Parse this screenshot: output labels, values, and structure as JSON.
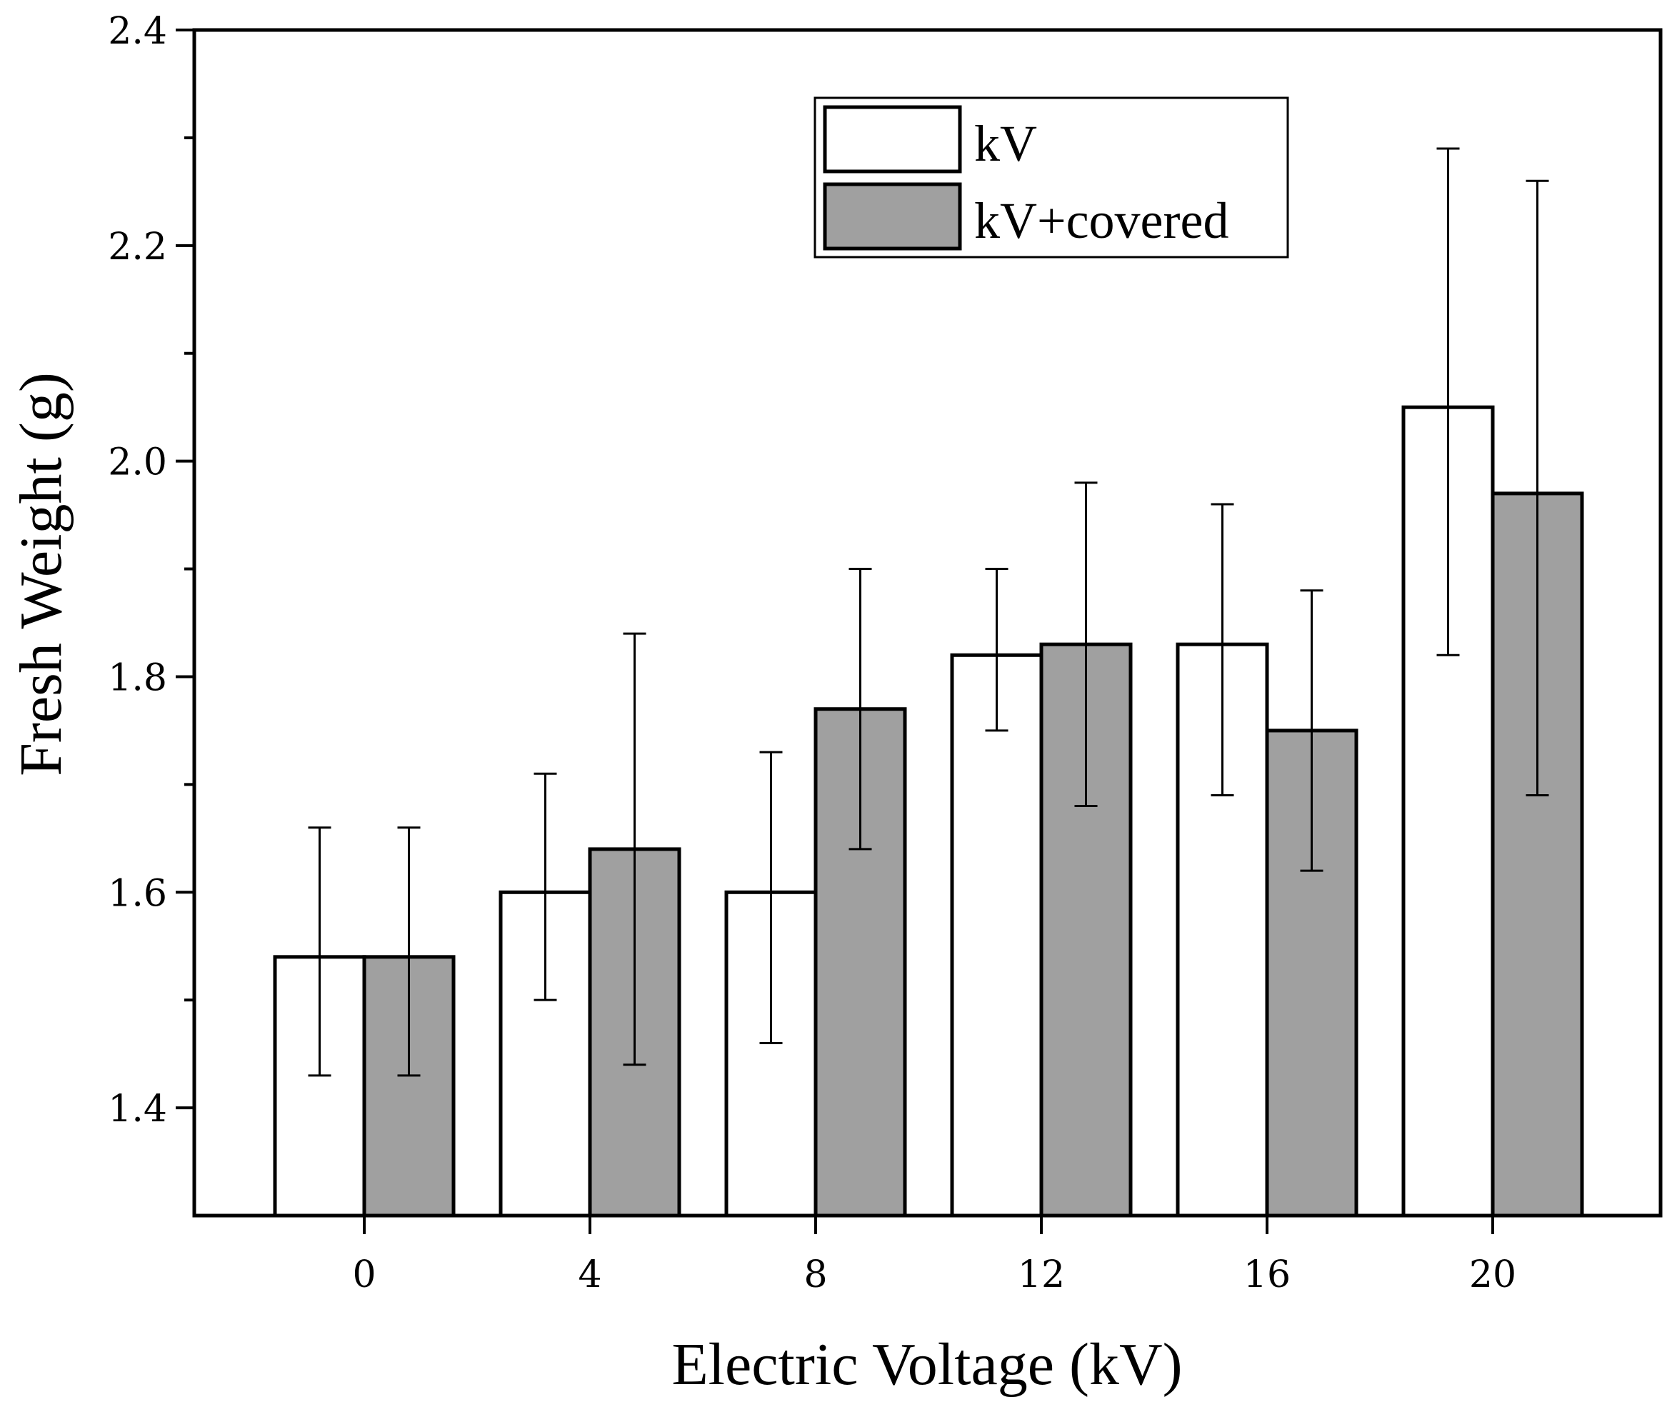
{
  "chart_data": {
    "type": "bar",
    "title": "",
    "xlabel": "Electric Voltage (kV)",
    "ylabel": "Fresh Weight (g)",
    "categories": [
      "0",
      "4",
      "8",
      "12",
      "16",
      "20"
    ],
    "ylim": [
      1.3,
      2.4
    ],
    "yticks": [
      1.4,
      1.6,
      1.8,
      2.0,
      2.2,
      2.4
    ],
    "ytick_labels": [
      "1.4",
      "1.6",
      "1.8",
      "2.0",
      "2.2",
      "2.4"
    ],
    "grid": false,
    "legend_position": "top-right",
    "series": [
      {
        "name": "kV",
        "color": "#ffffff",
        "values": [
          1.54,
          1.6,
          1.6,
          1.82,
          1.83,
          2.05
        ],
        "err_low": [
          1.43,
          1.5,
          1.46,
          1.75,
          1.69,
          1.82
        ],
        "err_high": [
          1.66,
          1.71,
          1.73,
          1.9,
          1.96,
          2.29
        ]
      },
      {
        "name": "kV+covered",
        "color": "#a0a0a0",
        "values": [
          1.54,
          1.64,
          1.77,
          1.83,
          1.75,
          1.97
        ],
        "err_low": [
          1.43,
          1.44,
          1.64,
          1.68,
          1.62,
          1.69
        ],
        "err_high": [
          1.66,
          1.84,
          1.9,
          1.98,
          1.88,
          2.26
        ]
      }
    ]
  }
}
